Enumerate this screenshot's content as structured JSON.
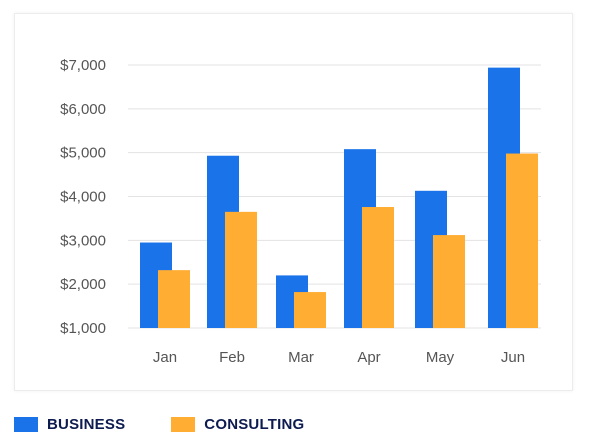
{
  "chart_data": {
    "type": "bar",
    "title": "",
    "xlabel": "",
    "ylabel": "",
    "categories": [
      "Jan",
      "Feb",
      "Mar",
      "Apr",
      "May",
      "Jun"
    ],
    "series": [
      {
        "name": "BUSINESS",
        "color": "#1a73e8",
        "values": [
          2950,
          4930,
          2200,
          5080,
          4130,
          6940
        ]
      },
      {
        "name": "CONSULTING",
        "color": "#ffad33",
        "values": [
          2320,
          3650,
          1820,
          3760,
          3120,
          4980
        ]
      }
    ],
    "yticks": [
      "$1,000",
      "$2,000",
      "$3,000",
      "$4,000",
      "$5,000",
      "$6,000",
      "$7,000"
    ],
    "ylim": [
      1000,
      7000
    ],
    "grid": true,
    "legend_position": "bottom-left"
  }
}
